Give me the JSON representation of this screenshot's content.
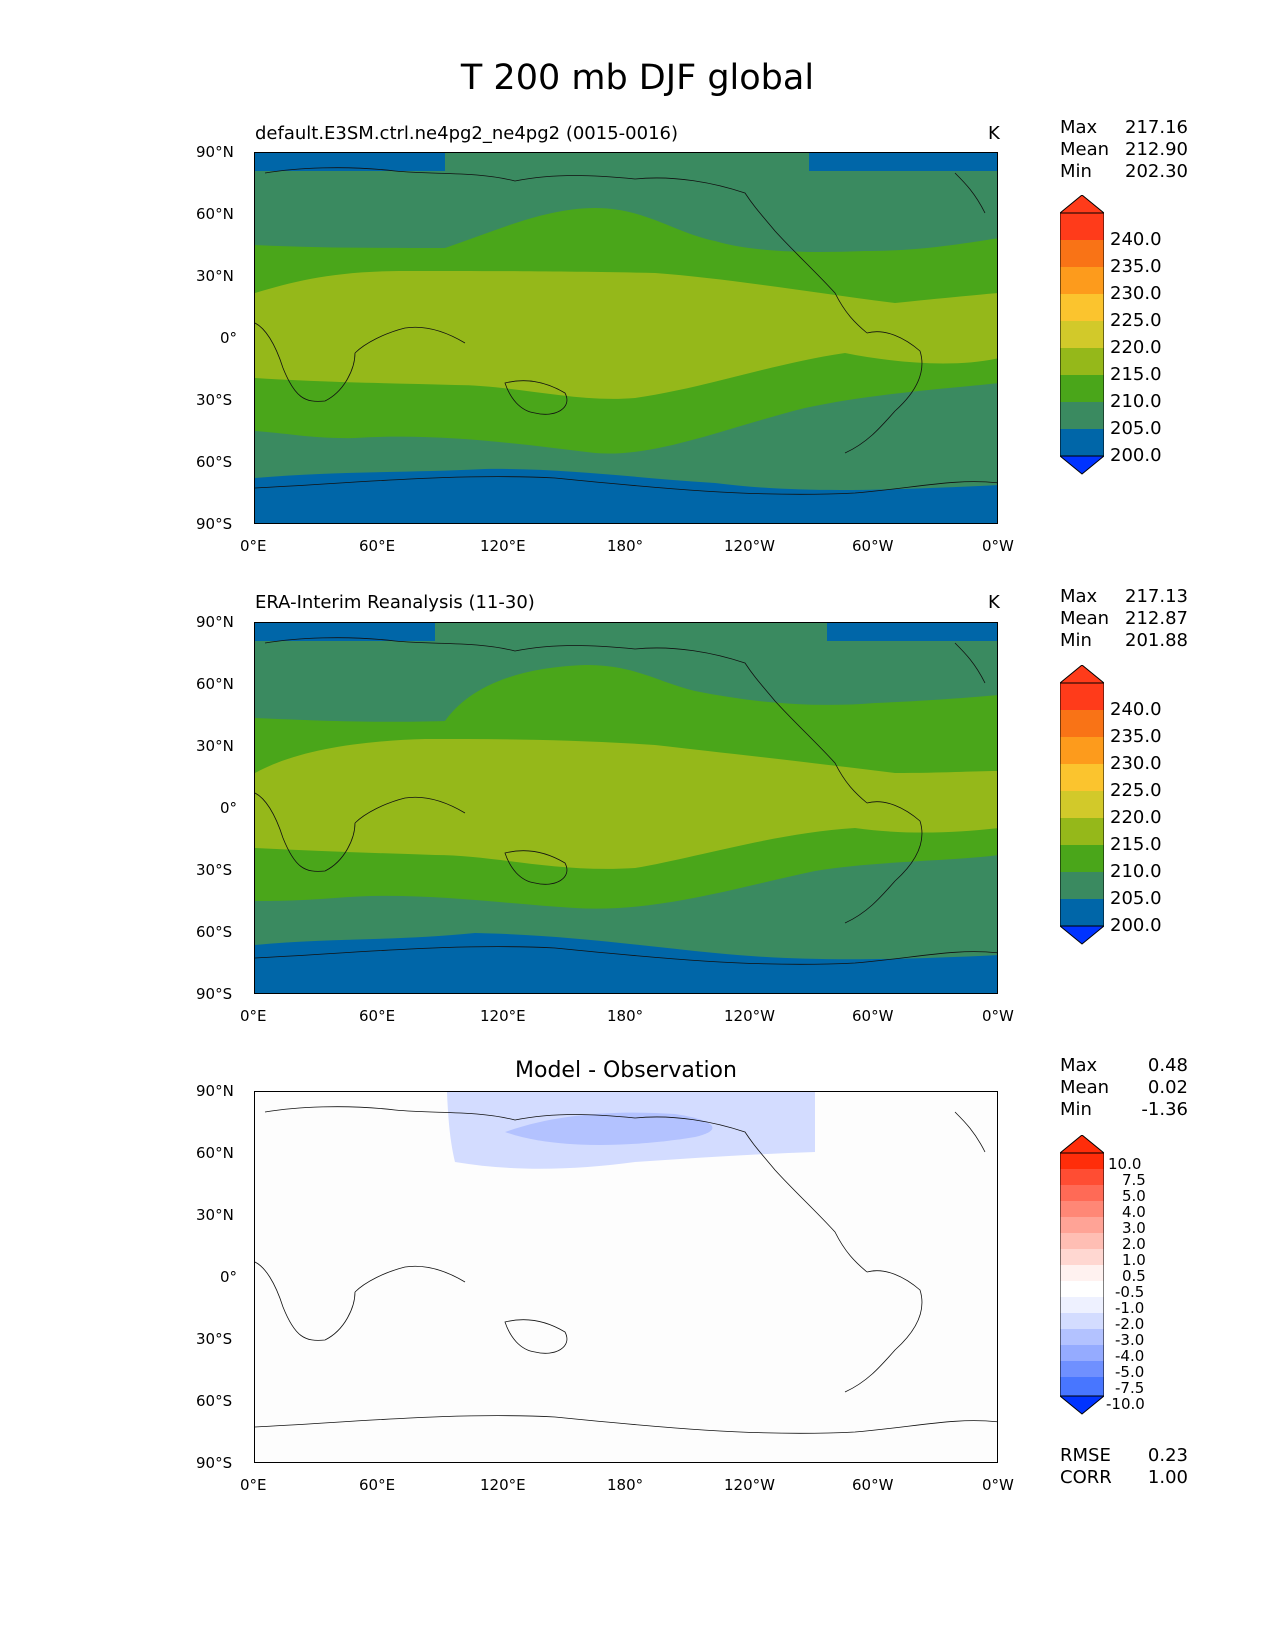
{
  "figure_title": "T 200 mb DJF global",
  "panels": [
    {
      "title": "default.E3SM.ctrl.ne4pg2_ne4pg2 (0015-0016)",
      "units": "K",
      "stats": [
        {
          "label": "Max",
          "value": "217.16"
        },
        {
          "label": "Mean",
          "value": "212.90"
        },
        {
          "label": "Min",
          "value": "202.30"
        }
      ],
      "colorbar_labels": [
        "240.0",
        "235.0",
        "230.0",
        "225.0",
        "220.0",
        "215.0",
        "210.0",
        "205.0",
        "200.0"
      ]
    },
    {
      "title": "ERA-Interim Reanalysis (11-30)",
      "units": "K",
      "stats": [
        {
          "label": "Max",
          "value": "217.13"
        },
        {
          "label": "Mean",
          "value": "212.87"
        },
        {
          "label": "Min",
          "value": "201.88"
        }
      ],
      "colorbar_labels": [
        "240.0",
        "235.0",
        "230.0",
        "225.0",
        "220.0",
        "215.0",
        "210.0",
        "205.0",
        "200.0"
      ]
    },
    {
      "title": "Model - Observation",
      "units": "",
      "stats": [
        {
          "label": "Max",
          "value": "0.48"
        },
        {
          "label": "Mean",
          "value": "0.02"
        },
        {
          "label": "Min",
          "value": "-1.36"
        }
      ],
      "colorbar_labels": [
        "10.0",
        "7.5",
        "5.0",
        "4.0",
        "3.0",
        "2.0",
        "1.0",
        "0.5",
        "-0.5",
        "-1.0",
        "-2.0",
        "-3.0",
        "-4.0",
        "-5.0",
        "-7.5",
        "-10.0"
      ],
      "extra_stats": [
        {
          "label": "RMSE",
          "value": "0.23"
        },
        {
          "label": "CORR",
          "value": "1.00"
        }
      ]
    }
  ],
  "lat_ticks": [
    "90°N",
    "60°N",
    "30°N",
    "0°",
    "30°S",
    "60°S",
    "90°S"
  ],
  "lon_ticks": [
    "0°E",
    "60°E",
    "120°E",
    "180°",
    "120°W",
    "60°W",
    "0°W"
  ],
  "colors": {
    "abs_levels": [
      "#0033ff",
      "#0066a8",
      "#3a8a60",
      "#4aa61a",
      "#95b81a",
      "#d2c92a",
      "#fbc42e",
      "#fd9b1c",
      "#f97316",
      "#ff3b1a"
    ],
    "diff_neg": [
      "#0033ff",
      "#2457ff",
      "#4876ff",
      "#6f90ff",
      "#95abff",
      "#b3c2ff",
      "#d3dcff",
      "#eef1ff"
    ],
    "diff_pos": [
      "#fff2f0",
      "#ffd7d1",
      "#ffbeb4",
      "#ffa396",
      "#ff8776",
      "#ff6a56",
      "#ff4d33",
      "#ff2d0a"
    ],
    "band_colors": {
      "polar": "#0066a8",
      "subpolar": "#3a8a60",
      "mid": "#4aa61a",
      "tropic": "#95b81a"
    }
  }
}
